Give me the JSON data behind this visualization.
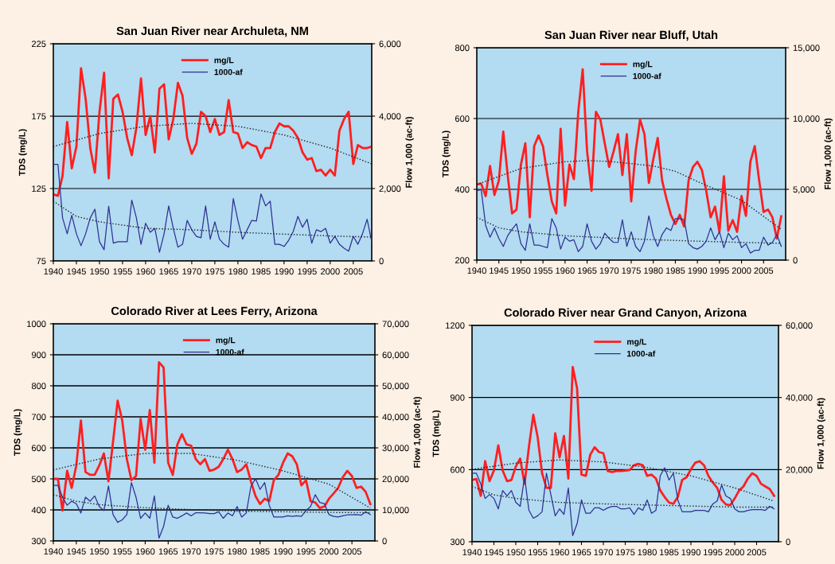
{
  "chart_data": [
    {
      "type": "line",
      "title": "San Juan River near Archuleta, NM",
      "ylabel": "TDS (mg/L)",
      "y2label": "Flow 1,000 (ac-ft)",
      "x": [
        1940,
        1941,
        1942,
        1943,
        1944,
        1945,
        1946,
        1947,
        1948,
        1949,
        1950,
        1951,
        1952,
        1953,
        1954,
        1955,
        1956,
        1957,
        1958,
        1959,
        1960,
        1961,
        1962,
        1963,
        1964,
        1965,
        1966,
        1967,
        1968,
        1969,
        1970,
        1971,
        1972,
        1973,
        1974,
        1975,
        1976,
        1977,
        1978,
        1979,
        1980,
        1981,
        1982,
        1983,
        1984,
        1985,
        1986,
        1987,
        1988,
        1989,
        1990,
        1991,
        1992,
        1993,
        1994,
        1995,
        1996,
        1997,
        1998,
        1999,
        2000,
        2001,
        2002,
        2003,
        2004,
        2005,
        2006,
        2007,
        2008,
        2009
      ],
      "xlim": [
        1940,
        2009
      ],
      "xticks": [
        1940,
        1945,
        1950,
        1955,
        1960,
        1965,
        1970,
        1975,
        1980,
        1985,
        1990,
        1995,
        2000,
        2005
      ],
      "ylim": [
        75,
        225
      ],
      "yticks": [
        75,
        125,
        175,
        225
      ],
      "y2lim": [
        0,
        6000
      ],
      "y2ticks": [
        {
          "value": 0,
          "label": "0"
        },
        {
          "value": 2000,
          "label": "2,000"
        },
        {
          "value": 4000,
          "label": "4,000"
        },
        {
          "value": 6000,
          "label": "6,000"
        }
      ],
      "grid": "y",
      "legend": "top",
      "series": [
        {
          "name": "mg/L",
          "color": "#ff1f1f",
          "values": [
            121,
            120,
            134,
            171,
            139,
            154,
            208,
            187,
            153,
            136,
            178,
            205,
            132,
            187,
            190,
            178,
            160,
            148,
            167,
            201,
            162,
            175,
            150,
            194,
            197,
            159,
            173,
            198,
            189,
            160,
            149,
            156,
            178,
            175,
            164,
            173,
            162,
            164,
            186,
            164,
            163,
            153,
            157,
            155,
            154,
            146,
            153,
            153,
            164,
            170,
            168,
            168,
            165,
            160,
            150,
            145,
            146,
            137,
            138,
            134,
            138,
            134,
            165,
            173,
            178,
            142,
            155,
            153,
            153,
            154
          ]
        },
        {
          "name": "1000-af",
          "color": "#2e3192",
          "axis": "y2",
          "values": [
            2670,
            2670,
            1190,
            750,
            1260,
            750,
            420,
            750,
            1190,
            1430,
            530,
            310,
            1510,
            490,
            530,
            530,
            530,
            1680,
            1190,
            460,
            1040,
            790,
            900,
            240,
            750,
            1520,
            900,
            380,
            460,
            1120,
            860,
            680,
            640,
            1520,
            600,
            1080,
            600,
            460,
            380,
            1720,
            1120,
            600,
            860,
            1120,
            1100,
            1850,
            1520,
            1650,
            460,
            460,
            400,
            570,
            820,
            1230,
            930,
            1150,
            490,
            860,
            810,
            900,
            490,
            680,
            460,
            350,
            270,
            680,
            460,
            750,
            1150,
            530
          ]
        },
        {
          "color": "#222222",
          "line_style": "dotted",
          "x": [
            1940,
            1950,
            1960,
            1970,
            1980,
            1990,
            2000,
            2009
          ],
          "values": [
            154,
            163,
            168,
            170,
            168,
            162,
            153,
            142
          ]
        },
        {
          "color": "#222222",
          "line_style": "dotted",
          "axis": "y2",
          "x": [
            1940,
            1945,
            1950,
            1960,
            1970,
            1980,
            1990,
            2000,
            2009
          ],
          "values": [
            1650,
            1230,
            1080,
            900,
            860,
            790,
            740,
            690,
            660
          ]
        }
      ]
    },
    {
      "type": "line",
      "title": "San Juan River near Bluff, Utah",
      "ylabel": "TDS (mg/L)",
      "y2label": "Flow 1,000 (ac-ft)",
      "x": [
        1940,
        1941,
        1942,
        1943,
        1944,
        1945,
        1946,
        1947,
        1948,
        1949,
        1950,
        1951,
        1952,
        1953,
        1954,
        1955,
        1956,
        1957,
        1958,
        1959,
        1960,
        1961,
        1962,
        1963,
        1964,
        1965,
        1966,
        1967,
        1968,
        1969,
        1970,
        1971,
        1972,
        1973,
        1974,
        1975,
        1976,
        1977,
        1978,
        1979,
        1980,
        1981,
        1982,
        1983,
        1984,
        1985,
        1986,
        1987,
        1988,
        1989,
        1990,
        1991,
        1992,
        1993,
        1994,
        1995,
        1996,
        1997,
        1998,
        1999,
        2000,
        2001,
        2002,
        2003,
        2004,
        2005,
        2006,
        2007,
        2008,
        2009
      ],
      "xlim": [
        1940,
        2010
      ],
      "xticks": [
        1940,
        1945,
        1950,
        1955,
        1960,
        1965,
        1970,
        1975,
        1980,
        1985,
        1990,
        1995,
        2000,
        2005
      ],
      "ylim": [
        200,
        800
      ],
      "yticks": [
        200,
        400,
        600,
        800
      ],
      "y2lim": [
        0,
        15000
      ],
      "y2ticks": [
        {
          "value": 0,
          "label": "0"
        },
        {
          "value": 5000,
          "label": "5,000"
        },
        {
          "value": 10000,
          "label": "10,000"
        },
        {
          "value": 15000,
          "label": "15,000"
        }
      ],
      "grid": "y",
      "legend": "top",
      "series": [
        {
          "name": "mg/L",
          "color": "#ff1f1f",
          "values": [
            414,
            416,
            381,
            466,
            384,
            425,
            563,
            440,
            332,
            343,
            470,
            530,
            321,
            522,
            552,
            522,
            440,
            366,
            332,
            571,
            354,
            470,
            429,
            619,
            739,
            507,
            396,
            619,
            597,
            530,
            463,
            507,
            556,
            440,
            556,
            366,
            507,
            597,
            556,
            418,
            485,
            545,
            425,
            373,
            328,
            302,
            328,
            295,
            425,
            463,
            478,
            455,
            396,
            321,
            351,
            280,
            437,
            283,
            313,
            280,
            381,
            325,
            478,
            522,
            425,
            336,
            343,
            321,
            261,
            324
          ]
        },
        {
          "name": "1000-af",
          "color": "#2e3192",
          "axis": "y2",
          "values": [
            4890,
            4980,
            2460,
            1620,
            2280,
            1530,
            970,
            1720,
            2180,
            2560,
            1160,
            690,
            2560,
            1060,
            1060,
            970,
            880,
            2930,
            2280,
            780,
            1620,
            1340,
            1440,
            600,
            970,
            2560,
            1340,
            780,
            1160,
            1900,
            1530,
            1250,
            1250,
            2840,
            970,
            2000,
            970,
            600,
            1340,
            3120,
            1720,
            970,
            1810,
            2280,
            2090,
            2930,
            2930,
            2840,
            1160,
            880,
            780,
            970,
            1340,
            2280,
            1440,
            2000,
            880,
            1900,
            1440,
            1720,
            880,
            1160,
            500,
            690,
            690,
            1620,
            1060,
            1250,
            1810,
            970
          ]
        },
        {
          "color": "#222222",
          "line_style": "dotted",
          "x": [
            1940,
            1950,
            1960,
            1965,
            1970,
            1980,
            1985,
            1990,
            2000,
            2009
          ],
          "values": [
            414,
            459,
            478,
            481,
            479,
            466,
            451,
            422,
            369,
            287
          ]
        },
        {
          "color": "#222222",
          "line_style": "dotted",
          "axis": "y2",
          "x": [
            1940,
            1945,
            1950,
            1960,
            1970,
            1980,
            1990,
            2000,
            2009
          ],
          "values": [
            3020,
            2280,
            2000,
            1720,
            1570,
            1440,
            1340,
            1250,
            1190
          ]
        }
      ]
    },
    {
      "type": "line",
      "title": "Colorado River at Lees Ferry, Arizona",
      "ylabel": "TDS (mg/L)",
      "y2label": "Flow 1,000 (ac-ft)",
      "x": [
        1940,
        1941,
        1942,
        1943,
        1944,
        1945,
        1946,
        1947,
        1948,
        1949,
        1950,
        1951,
        1952,
        1953,
        1954,
        1955,
        1956,
        1957,
        1958,
        1959,
        1960,
        1961,
        1962,
        1963,
        1964,
        1965,
        1966,
        1967,
        1968,
        1969,
        1970,
        1971,
        1972,
        1973,
        1974,
        1975,
        1976,
        1977,
        1978,
        1979,
        1980,
        1981,
        1982,
        1983,
        1984,
        1985,
        1986,
        1987,
        1988,
        1989,
        1990,
        1991,
        1992,
        1993,
        1994,
        1995,
        1996,
        1997,
        1998,
        1999,
        2000,
        2001,
        2002,
        2003,
        2004,
        2005,
        2006,
        2007,
        2008,
        2009
      ],
      "xlim": [
        1940,
        2010
      ],
      "xticks": [
        1940,
        1945,
        1950,
        1955,
        1960,
        1965,
        1970,
        1975,
        1980,
        1985,
        1990,
        1995,
        2000,
        2005
      ],
      "ylim": [
        300,
        1000
      ],
      "yticks": [
        300,
        400,
        500,
        600,
        700,
        800,
        900,
        1000
      ],
      "y2lim": [
        0,
        70000
      ],
      "y2ticks": [
        {
          "value": 0,
          "label": "0"
        },
        {
          "value": 10000,
          "label": "10,000"
        },
        {
          "value": 20000,
          "label": "20,000"
        },
        {
          "value": 30000,
          "label": "30,000"
        },
        {
          "value": 40000,
          "label": "40,000"
        },
        {
          "value": 50000,
          "label": "50,000"
        },
        {
          "value": 60000,
          "label": "60,000"
        },
        {
          "value": 70000,
          "label": "70,000"
        }
      ],
      "grid": "y",
      "legend": "top",
      "series": [
        {
          "name": "mg/L",
          "color": "#ff1f1f",
          "values": [
            500,
            500,
            398,
            526,
            471,
            543,
            688,
            522,
            513,
            513,
            543,
            582,
            492,
            620,
            752,
            688,
            564,
            496,
            509,
            693,
            594,
            722,
            552,
            876,
            859,
            552,
            513,
            611,
            644,
            611,
            607,
            564,
            547,
            564,
            526,
            530,
            539,
            564,
            594,
            564,
            522,
            530,
            547,
            492,
            445,
            419,
            436,
            428,
            496,
            513,
            552,
            582,
            573,
            547,
            479,
            496,
            428,
            424,
            406,
            411,
            436,
            453,
            471,
            505,
            526,
            509,
            471,
            475,
            458,
            419
          ]
        },
        {
          "name": "1000-af",
          "color": "#2e3192",
          "axis": "y2",
          "values": [
            17900,
            17900,
            14100,
            11500,
            12800,
            12000,
            9000,
            14100,
            12800,
            14500,
            11100,
            9800,
            17700,
            8500,
            6000,
            6800,
            8500,
            18800,
            14100,
            7300,
            9000,
            7300,
            14500,
            900,
            4700,
            11500,
            7700,
            7300,
            8100,
            9000,
            8100,
            9100,
            9100,
            9000,
            8800,
            8800,
            9400,
            7300,
            9000,
            8100,
            11100,
            7700,
            9000,
            17500,
            20100,
            16600,
            18800,
            11500,
            7700,
            7700,
            7700,
            8100,
            7900,
            8100,
            7900,
            9800,
            11100,
            14900,
            12400,
            12000,
            8500,
            7900,
            7700,
            8100,
            8400,
            8400,
            8500,
            8300,
            9400,
            8500
          ]
        },
        {
          "color": "#222222",
          "line_style": "dotted",
          "x": [
            1940,
            1950,
            1960,
            1970,
            1980,
            1990,
            2000,
            2009
          ],
          "values": [
            529,
            564,
            582,
            582,
            560,
            526,
            483,
            406
          ]
        },
        {
          "color": "#222222",
          "line_style": "dotted",
          "axis": "y2",
          "x": [
            1940,
            1945,
            1950,
            1960,
            1970,
            1980,
            1990,
            2000,
            2009
          ],
          "values": [
            14900,
            12800,
            11700,
            10700,
            10100,
            9600,
            9400,
            9200,
            9100
          ]
        }
      ]
    },
    {
      "type": "line",
      "title": "Colorado River near Grand Canyon, Arizona",
      "ylabel": "TDS (mg/L)",
      "y2label": "Flow 1,000 (ac-ft)",
      "x": [
        1940,
        1941,
        1942,
        1943,
        1944,
        1945,
        1946,
        1947,
        1948,
        1949,
        1950,
        1951,
        1952,
        1953,
        1954,
        1955,
        1956,
        1957,
        1958,
        1959,
        1960,
        1961,
        1962,
        1963,
        1964,
        1965,
        1966,
        1967,
        1968,
        1969,
        1970,
        1971,
        1972,
        1973,
        1974,
        1975,
        1976,
        1977,
        1978,
        1979,
        1980,
        1981,
        1982,
        1983,
        1984,
        1985,
        1986,
        1987,
        1988,
        1989,
        1990,
        1991,
        1992,
        1993,
        1994,
        1995,
        1996,
        1997,
        1998,
        1999,
        2000,
        2001,
        2002,
        2003,
        2004,
        2005,
        2006,
        2007,
        2008,
        2009
      ],
      "xlim": [
        1940,
        2010
      ],
      "xticks": [
        1940,
        1945,
        1950,
        1955,
        1960,
        1965,
        1970,
        1975,
        1980,
        1985,
        1990,
        1995,
        2000,
        2005
      ],
      "ylim": [
        300,
        1200
      ],
      "yticks": [
        300,
        600,
        900,
        1200
      ],
      "y2lim": [
        0,
        60000
      ],
      "y2ticks": [
        {
          "value": 0,
          "label": "0"
        },
        {
          "value": 20000,
          "label": "20,000"
        },
        {
          "value": 40000,
          "label": "40,000"
        },
        {
          "value": 60000,
          "label": "60,000"
        }
      ],
      "grid": "y",
      "legend": "top",
      "series": [
        {
          "name": "mg/L",
          "color": "#ff1f1f",
          "values": [
            557,
            561,
            491,
            635,
            552,
            596,
            701,
            596,
            552,
            557,
            613,
            646,
            541,
            695,
            828,
            734,
            585,
            524,
            524,
            751,
            651,
            740,
            563,
            1027,
            938,
            579,
            574,
            662,
            693,
            673,
            668,
            594,
            590,
            594,
            594,
            596,
            598,
            618,
            624,
            618,
            574,
            579,
            563,
            513,
            486,
            463,
            458,
            486,
            557,
            568,
            601,
            629,
            635,
            618,
            574,
            546,
            524,
            474,
            455,
            452,
            480,
            513,
            530,
            563,
            585,
            574,
            541,
            530,
            519,
            491
          ]
        },
        {
          "name": "1000-af",
          "color": "#2e3192",
          "axis": "y2",
          "values": [
            19000,
            19000,
            16000,
            12000,
            13100,
            12000,
            9100,
            14200,
            12700,
            14200,
            10900,
            9800,
            17900,
            8700,
            6500,
            7200,
            8300,
            19000,
            13100,
            7200,
            9100,
            7600,
            14900,
            1700,
            5000,
            11600,
            7900,
            7900,
            9400,
            9400,
            8700,
            9400,
            9800,
            9800,
            9100,
            9100,
            9400,
            7600,
            9400,
            8700,
            11600,
            7900,
            8700,
            18300,
            20500,
            17100,
            19000,
            11600,
            8300,
            8300,
            8300,
            8700,
            8700,
            8700,
            8300,
            10500,
            11300,
            15700,
            12700,
            12000,
            9100,
            8300,
            8300,
            8700,
            8900,
            8900,
            8900,
            8700,
            9800,
            9100
          ]
        },
        {
          "color": "#222222",
          "line_style": "dotted",
          "x": [
            1940,
            1950,
            1960,
            1970,
            1980,
            1990,
            2000,
            2009
          ],
          "values": [
            601,
            627,
            640,
            632,
            609,
            574,
            524,
            469
          ]
        },
        {
          "color": "#222222",
          "line_style": "dotted",
          "axis": "y2",
          "x": [
            1940,
            1945,
            1950,
            1960,
            1970,
            1980,
            1990,
            2000,
            2009
          ],
          "values": [
            15300,
            13000,
            12000,
            10900,
            10500,
            10200,
            9900,
            9600,
            9600
          ]
        }
      ]
    }
  ]
}
